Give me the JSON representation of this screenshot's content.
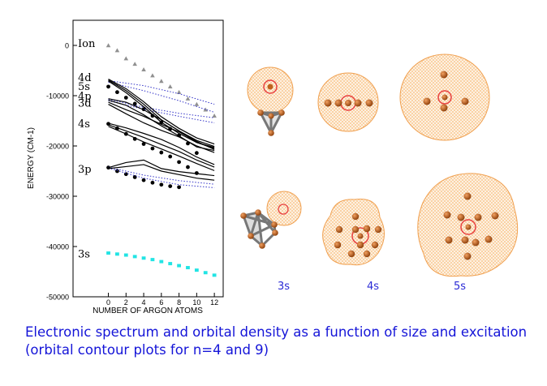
{
  "chart_data": {
    "type": "line",
    "ylabel": "ENERGY (CM-1)",
    "xlabel": "NUMBER OF ARGON ATOMS",
    "xticks": [
      0,
      2,
      4,
      6,
      8,
      10,
      12
    ],
    "yticks": [
      0,
      -10000,
      -20000,
      -30000,
      -40000,
      -50000
    ],
    "ytick_labels": [
      "0",
      "-10000",
      "-20000",
      "-30000",
      "-40000",
      "-50000"
    ],
    "xlim": [
      -4,
      13
    ],
    "ylim": [
      -50000,
      5000
    ],
    "level_labels": [
      {
        "text": "Ion",
        "y": 500
      },
      {
        "text": "4d",
        "y": -6300
      },
      {
        "text": "5s",
        "y": -8100
      },
      {
        "text": "4p",
        "y": -10000
      },
      {
        "text": "3d",
        "y": -11400
      },
      {
        "text": "4s",
        "y": -15500
      },
      {
        "text": "3p",
        "y": -24500
      },
      {
        "text": "3s",
        "y": -41400
      }
    ],
    "series": [
      {
        "name": "Ion",
        "style": "triangles",
        "color": "#909090",
        "x": [
          0,
          1,
          2,
          3,
          4,
          5,
          6,
          7,
          8,
          9,
          10,
          11,
          12
        ],
        "y": [
          0,
          -1000,
          -2600,
          -3700,
          -4800,
          -6000,
          -7100,
          -8200,
          -9300,
          -10600,
          -11700,
          -12800,
          -14000
        ]
      },
      {
        "name": "5s-dots",
        "style": "dots",
        "color": "#000000",
        "x": [
          0,
          1,
          2,
          3,
          4,
          5,
          6,
          7,
          8,
          9,
          10
        ],
        "y": [
          -8200,
          -9300,
          -10400,
          -11600,
          -12700,
          -14000,
          -15300,
          -16600,
          -17900,
          -19500,
          -21400
        ]
      },
      {
        "name": "4s-dots",
        "style": "dots",
        "color": "#000000",
        "x": [
          0,
          1,
          2,
          3,
          4,
          5,
          6,
          7,
          8,
          9,
          10
        ],
        "y": [
          -15600,
          -16500,
          -17600,
          -18600,
          -19600,
          -20500,
          -21300,
          -22100,
          -23200,
          -24200,
          -25400
        ]
      },
      {
        "name": "3p-dots",
        "style": "dots",
        "color": "#000000",
        "x": [
          0,
          1,
          2,
          3,
          4,
          5,
          6,
          7,
          8
        ],
        "y": [
          -24300,
          -25000,
          -25600,
          -26200,
          -26800,
          -27300,
          -27700,
          -28000,
          -28200
        ]
      },
      {
        "name": "3s",
        "style": "squares",
        "color": "#22e4e4",
        "x": [
          0,
          1,
          2,
          3,
          4,
          5,
          6,
          7,
          8,
          9,
          10,
          11,
          12
        ],
        "y": [
          -41300,
          -41500,
          -41700,
          -42000,
          -42300,
          -42600,
          -43000,
          -43400,
          -43800,
          -44200,
          -44700,
          -45200,
          -45700
        ]
      },
      {
        "name": "blue-a",
        "style": "dotted",
        "color": "#3434c8",
        "x": [
          0,
          4,
          8,
          12
        ],
        "y": [
          -7000,
          -8000,
          -9600,
          -11700
        ]
      },
      {
        "name": "blue-b",
        "style": "dotted",
        "color": "#3434c8",
        "x": [
          0,
          4,
          8,
          12
        ],
        "y": [
          -7300,
          -9000,
          -11000,
          -13300
        ]
      },
      {
        "name": "blue-c",
        "style": "dotted",
        "color": "#3434c8",
        "x": [
          0,
          4,
          8,
          12
        ],
        "y": [
          -10700,
          -12300,
          -13500,
          -14400
        ]
      },
      {
        "name": "blue-d",
        "style": "dotted",
        "color": "#3434c8",
        "x": [
          0,
          4,
          8,
          12
        ],
        "y": [
          -11000,
          -12700,
          -14100,
          -15400
        ]
      },
      {
        "name": "blue-e",
        "style": "dotted",
        "color": "#3434c8",
        "x": [
          0,
          4,
          8,
          12
        ],
        "y": [
          -24200,
          -25800,
          -26900,
          -27600
        ]
      },
      {
        "name": "blue-f",
        "style": "dotted",
        "color": "#3434c8",
        "x": [
          0,
          4,
          8,
          12
        ],
        "y": [
          -24400,
          -26400,
          -27700,
          -28300
        ]
      },
      {
        "name": "4d-line-1",
        "style": "solid",
        "color": "#000000",
        "x": [
          0,
          2,
          4,
          6,
          8,
          10,
          12
        ],
        "y": [
          -6700,
          -8600,
          -11200,
          -14200,
          -16500,
          -18400,
          -19600
        ]
      },
      {
        "name": "4d-line-2",
        "style": "solid",
        "color": "#000000",
        "x": [
          0,
          2,
          4,
          6,
          8,
          10,
          12
        ],
        "y": [
          -6900,
          -9000,
          -11700,
          -14800,
          -17000,
          -18900,
          -20100
        ]
      },
      {
        "name": "5s-line",
        "style": "solid",
        "color": "#000000",
        "x": [
          0,
          2,
          4,
          6,
          8,
          10,
          12
        ],
        "y": [
          -7100,
          -9400,
          -12200,
          -15300,
          -17500,
          -19300,
          -20500
        ]
      },
      {
        "name": "4p-line-1",
        "style": "solid",
        "color": "#000000",
        "x": [
          0,
          2,
          4,
          6,
          8,
          10,
          12
        ],
        "y": [
          -10600,
          -11300,
          -12800,
          -14800,
          -17000,
          -19300,
          -20300
        ]
      },
      {
        "name": "4p-line-2",
        "style": "solid",
        "color": "#000000",
        "x": [
          0,
          2,
          4,
          6,
          8,
          10,
          12
        ],
        "y": [
          -10900,
          -11900,
          -13800,
          -16000,
          -18000,
          -20200,
          -20900
        ]
      },
      {
        "name": "3d-line-1",
        "style": "solid",
        "color": "#000000",
        "x": [
          0,
          2,
          4,
          6,
          8,
          10,
          12
        ],
        "y": [
          -11300,
          -12800,
          -14100,
          -15700,
          -17200,
          -19100,
          -20700
        ]
      },
      {
        "name": "3d-line-2",
        "style": "solid",
        "color": "#000000",
        "x": [
          0,
          2,
          4,
          6,
          8,
          10,
          12
        ],
        "y": [
          -11700,
          -13600,
          -15400,
          -16900,
          -18200,
          -20000,
          -21300
        ]
      },
      {
        "name": "4s-line-1",
        "style": "solid",
        "color": "#000000",
        "x": [
          0,
          2,
          4,
          6,
          8,
          10,
          12
        ],
        "y": [
          -15500,
          -16400,
          -17500,
          -18700,
          -20300,
          -22200,
          -23700
        ]
      },
      {
        "name": "4s-line-2",
        "style": "solid",
        "color": "#000000",
        "x": [
          0,
          2,
          4,
          6,
          8,
          10,
          12
        ],
        "y": [
          -15800,
          -17000,
          -18300,
          -19700,
          -21100,
          -22800,
          -24200
        ]
      },
      {
        "name": "4s-line-3",
        "style": "solid",
        "color": "#000000",
        "x": [
          0,
          2,
          4,
          6,
          8,
          10,
          12
        ],
        "y": [
          -16100,
          -17600,
          -19200,
          -20600,
          -22000,
          -23500,
          -24900
        ]
      },
      {
        "name": "3p-line-1",
        "style": "solid",
        "color": "#000000",
        "x": [
          0,
          2,
          4,
          6,
          8,
          10,
          12
        ],
        "y": [
          -24300,
          -23300,
          -22800,
          -24500,
          -25100,
          -25500,
          -25900
        ]
      },
      {
        "name": "3p-line-2",
        "style": "solid",
        "color": "#000000",
        "x": [
          0,
          2,
          4,
          6,
          8,
          10,
          12
        ],
        "y": [
          -24500,
          -24100,
          -23700,
          -25000,
          -25700,
          -26400,
          -26800
        ]
      }
    ]
  },
  "orbitals": {
    "labels": [
      "3s",
      "4s",
      "5s"
    ],
    "colors": {
      "mesh": "#f5b060",
      "core": "#e84040",
      "atom": "#c0621e",
      "bond": "#7a7a7a"
    }
  },
  "caption": {
    "line1": "Electronic spectrum and orbital density as a function of size and excitation",
    "line2": "(orbital contour plots for n=4 and 9)"
  }
}
